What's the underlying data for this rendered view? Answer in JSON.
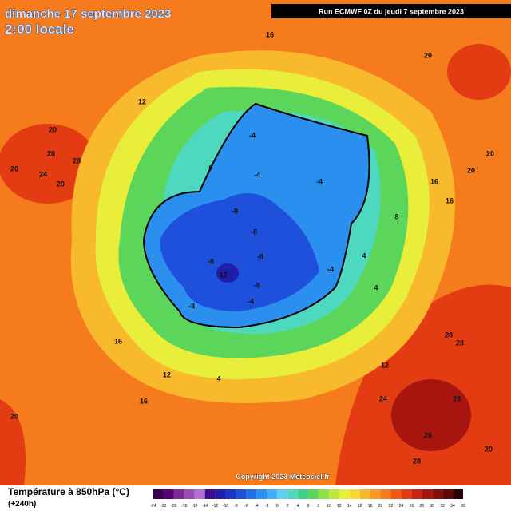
{
  "header": {
    "title": "dimanche 17 septembre 2023",
    "time": "2:00 locale",
    "run": "Run ECMWF 0Z du jeudi 7 septembre 2023"
  },
  "map": {
    "labels": [
      16,
      20,
      12,
      20,
      28,
      28,
      24,
      20,
      20,
      20,
      20,
      16,
      16,
      8,
      -4,
      -4,
      -8,
      -8,
      -8,
      -12,
      -8,
      -8,
      -4,
      -8,
      -4,
      -4,
      4,
      4,
      0,
      12,
      12,
      4,
      16,
      16,
      28,
      28,
      24,
      28,
      28,
      20,
      28,
      20
    ]
  },
  "copyright": "Copyright 2023 Meteociel.fr",
  "legend": {
    "title": "Température à 850hPa (°C)",
    "lead": "(+240h)",
    "ticks": [
      -24,
      -22,
      -20,
      -18,
      -16,
      -14,
      -12,
      -10,
      -8,
      -6,
      -4,
      -2,
      0,
      2,
      4,
      6,
      8,
      10,
      12,
      14,
      16,
      18,
      20,
      22,
      24,
      26,
      28,
      30,
      32,
      34,
      36
    ],
    "colors": [
      "#3a0050",
      "#5a0078",
      "#7a2a96",
      "#9a4db3",
      "#b36fcf",
      "#3d0f8f",
      "#1e1ea8",
      "#1d33c8",
      "#1e50dc",
      "#2070e6",
      "#2b8ff0",
      "#3fb0f5",
      "#5fcdf4",
      "#4fd8c0",
      "#3fd08a",
      "#5cd65a",
      "#8ce04a",
      "#bfe83f",
      "#e8ee3a",
      "#f7d835",
      "#f9b92c",
      "#f99a24",
      "#f57b1d",
      "#ef5a17",
      "#e33c12",
      "#c82410",
      "#a7150e",
      "#83100c",
      "#5e0a08",
      "#2a0404"
    ]
  }
}
